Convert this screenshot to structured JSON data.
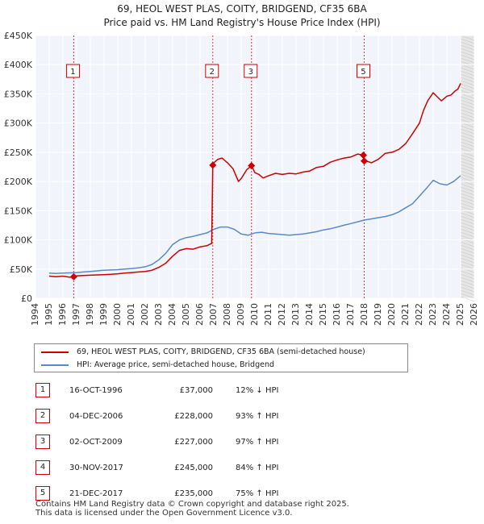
{
  "title": {
    "line1": "69, HEOL WEST PLAS, COITY, BRIDGEND, CF35 6BA",
    "line2": "Price paid vs. HM Land Registry's House Price Index (HPI)"
  },
  "chart_data": {
    "type": "line",
    "title": "69, HEOL WEST PLAS, COITY, BRIDGEND, CF35 6BA",
    "subtitle": "Price paid vs. HM Land Registry's House Price Index (HPI)",
    "xlim": [
      1994,
      2026
    ],
    "ylim": [
      0,
      450000
    ],
    "x_ticks": [
      1994,
      1995,
      1996,
      1997,
      1998,
      1999,
      2000,
      2001,
      2002,
      2003,
      2004,
      2005,
      2006,
      2007,
      2008,
      2009,
      2010,
      2011,
      2012,
      2013,
      2014,
      2015,
      2016,
      2017,
      2018,
      2019,
      2020,
      2021,
      2022,
      2023,
      2024,
      2025,
      2026
    ],
    "y_ticks": [
      {
        "value": 0,
        "label": "£0"
      },
      {
        "value": 50000,
        "label": "£50K"
      },
      {
        "value": 100000,
        "label": "£100K"
      },
      {
        "value": 150000,
        "label": "£150K"
      },
      {
        "value": 200000,
        "label": "£200K"
      },
      {
        "value": 250000,
        "label": "£250K"
      },
      {
        "value": 300000,
        "label": "£300K"
      },
      {
        "value": 350000,
        "label": "£350K"
      },
      {
        "value": 400000,
        "label": "£400K"
      },
      {
        "value": 450000,
        "label": "£450K"
      }
    ],
    "grid": true,
    "legend_position": "below",
    "series": [
      {
        "name": "69, HEOL WEST PLAS, COITY, BRIDGEND, CF35 6BA (semi-detached house)",
        "color": "#cc0000",
        "x": [
          1995.0,
          1995.5,
          1996.0,
          1996.5,
          1996.79,
          1997.0,
          1997.5,
          1998.0,
          1998.5,
          1999.0,
          1999.5,
          2000.0,
          2000.5,
          2001.0,
          2001.5,
          2002.0,
          2002.5,
          2003.0,
          2003.5,
          2004.0,
          2004.5,
          2005.0,
          2005.5,
          2006.0,
          2006.5,
          2006.85,
          2006.93,
          2007.0,
          2007.3,
          2007.6,
          2008.0,
          2008.4,
          2008.8,
          2009.0,
          2009.4,
          2009.75,
          2010.0,
          2010.3,
          2010.6,
          2011.0,
          2011.5,
          2012.0,
          2012.5,
          2013.0,
          2013.5,
          2014.0,
          2014.5,
          2015.0,
          2015.5,
          2016.0,
          2016.5,
          2017.0,
          2017.5,
          2017.91,
          2017.97,
          2018.0,
          2018.5,
          2019.0,
          2019.5,
          2020.0,
          2020.5,
          2021.0,
          2021.5,
          2022.0,
          2022.3,
          2022.6,
          2023.0,
          2023.3,
          2023.6,
          2024.0,
          2024.3,
          2024.6,
          2024.8,
          2025.0
        ],
        "values": [
          38000,
          37000,
          38000,
          36000,
          37000,
          38500,
          39000,
          39500,
          40000,
          40500,
          41000,
          42000,
          43000,
          44000,
          45000,
          46000,
          48000,
          53000,
          60000,
          72000,
          82000,
          85000,
          84000,
          88000,
          90000,
          94000,
          228000,
          232000,
          238000,
          240000,
          232000,
          222000,
          200000,
          205000,
          220000,
          227000,
          215000,
          212000,
          206000,
          210000,
          214000,
          212000,
          214000,
          213000,
          216000,
          218000,
          224000,
          226000,
          233000,
          237000,
          240000,
          242000,
          247000,
          245000,
          235000,
          236000,
          232000,
          238000,
          248000,
          250000,
          255000,
          265000,
          282000,
          300000,
          322000,
          338000,
          352000,
          345000,
          338000,
          346000,
          348000,
          355000,
          358000,
          368000
        ]
      },
      {
        "name": "HPI: Average price, semi-detached house, Bridgend",
        "color": "#5a8ac6",
        "x": [
          1995.0,
          1995.5,
          1996.0,
          1996.5,
          1997.0,
          1997.5,
          1998.0,
          1998.5,
          1999.0,
          1999.5,
          2000.0,
          2000.5,
          2001.0,
          2001.5,
          2002.0,
          2002.5,
          2003.0,
          2003.5,
          2004.0,
          2004.5,
          2005.0,
          2005.5,
          2006.0,
          2006.5,
          2007.0,
          2007.5,
          2008.0,
          2008.5,
          2009.0,
          2009.5,
          2010.0,
          2010.5,
          2011.0,
          2011.5,
          2012.0,
          2012.5,
          2013.0,
          2013.5,
          2014.0,
          2014.5,
          2015.0,
          2015.5,
          2016.0,
          2016.5,
          2017.0,
          2017.5,
          2018.0,
          2018.5,
          2019.0,
          2019.5,
          2020.0,
          2020.5,
          2021.0,
          2021.5,
          2022.0,
          2022.5,
          2023.0,
          2023.5,
          2024.0,
          2024.5,
          2025.0
        ],
        "values": [
          43000,
          42500,
          43000,
          43500,
          44000,
          45000,
          46000,
          47000,
          48000,
          48500,
          49000,
          50000,
          51000,
          52000,
          54000,
          58000,
          66000,
          77000,
          92000,
          100000,
          104000,
          106000,
          109000,
          112000,
          118000,
          122000,
          122000,
          118000,
          110000,
          108000,
          112000,
          113000,
          111000,
          110000,
          109000,
          108000,
          109000,
          110000,
          112000,
          114000,
          117000,
          119000,
          122000,
          125000,
          128000,
          131000,
          134000,
          136000,
          138000,
          140000,
          143000,
          148000,
          155000,
          162000,
          175000,
          188000,
          202000,
          196000,
          194000,
          200000,
          210000
        ]
      }
    ],
    "annotations": [
      {
        "label": "1",
        "x": 1996.79
      },
      {
        "label": "2",
        "x": 2006.93
      },
      {
        "label": "3",
        "x": 2009.75
      },
      {
        "label": "5",
        "x": 2017.97
      }
    ],
    "sale_points": [
      {
        "x": 1996.79,
        "y": 37000
      },
      {
        "x": 2006.93,
        "y": 228000
      },
      {
        "x": 2009.75,
        "y": 227000
      },
      {
        "x": 2017.91,
        "y": 245000
      },
      {
        "x": 2017.97,
        "y": 235000
      }
    ],
    "projection_start_x": 2025.0
  },
  "legend": {
    "property_label": "69, HEOL WEST PLAS, COITY, BRIDGEND, CF35 6BA (semi-detached house)",
    "hpi_label": "HPI: Average price, semi-detached house, Bridgend",
    "property_color": "#cc0000",
    "hpi_color": "#5a8ac6"
  },
  "sales": [
    {
      "num": "1",
      "date": "16-OCT-1996",
      "price": "£37,000",
      "hpi": "12% ↓ HPI"
    },
    {
      "num": "2",
      "date": "04-DEC-2006",
      "price": "£228,000",
      "hpi": "93% ↑ HPI"
    },
    {
      "num": "3",
      "date": "02-OCT-2009",
      "price": "£227,000",
      "hpi": "97% ↑ HPI"
    },
    {
      "num": "4",
      "date": "30-NOV-2017",
      "price": "£245,000",
      "hpi": "84% ↑ HPI"
    },
    {
      "num": "5",
      "date": "21-DEC-2017",
      "price": "£235,000",
      "hpi": "75% ↑ HPI"
    }
  ],
  "footer": {
    "line1": "Contains HM Land Registry data © Crown copyright and database right 2025.",
    "line2": "This data is licensed under the Open Government Licence v3.0."
  }
}
